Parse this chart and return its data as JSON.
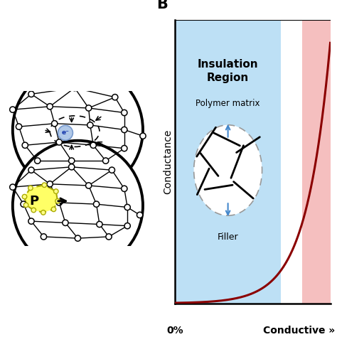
{
  "panel_b_title": "B",
  "insulation_label": "Insulation\nRegion",
  "polymer_label": "Polymer matrix",
  "filler_label": "Filler",
  "conductance_label": "Conductance",
  "x_label_0": "0%",
  "x_label_1": "Conductive »",
  "blue_region_color": "#BDE0F5",
  "pink_region_color": "#F5BFBF",
  "curve_color": "#8B0000",
  "electron_circle_fill": "#B0C8E8",
  "yellow_fill": "#FFFF66",
  "yellow_edge": "#CCCC00",
  "node_color": "#FFFFFF",
  "node_edge": "#000000",
  "bg_color": "#FFFFFF"
}
